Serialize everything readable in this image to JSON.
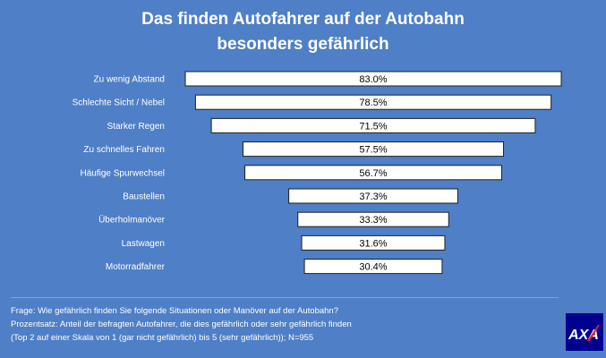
{
  "title_line1": "Das finden Autofahrer auf der Autobahn",
  "title_line2": "besonders gefährlich",
  "chart_data": {
    "type": "bar",
    "orientation": "horizontal",
    "layout": "centered",
    "categories": [
      "Zu wenig Abstand",
      "Schlechte Sicht / Nebel",
      "Starker Regen",
      "Zu schnelles Fahren",
      "Häufige Spurwechsel",
      "Baustellen",
      "Überholmanöver",
      "Lastwagen",
      "Motorradfahrer"
    ],
    "values": [
      83.0,
      78.5,
      71.5,
      57.5,
      56.7,
      37.3,
      33.3,
      31.6,
      30.4
    ],
    "labels": [
      "83.0%",
      "78.5%",
      "71.5%",
      "57.5%",
      "56.7%",
      "37.3%",
      "33.3%",
      "31.6%",
      "30.4%"
    ],
    "unit": "%",
    "max": 83.0
  },
  "footer": {
    "line1": "Frage: Wie gefährlich finden Sie folgende Situationen oder Manöver auf der Autobahn?",
    "line2": "Prozentsatz: Anteil der befragten Autofahrer, die dies gefährlich oder sehr gefährlich finden",
    "line3": "(Top 2 auf einer Skala von 1 (gar nicht gefährlich) bis 5 (sehr gefährlich)); N=955"
  },
  "logo": {
    "text": "AXA",
    "bg_color": "#00008f",
    "stripe_color": "#ff1721"
  },
  "colors": {
    "background": "#4f7fc6",
    "bar_fill": "#ffffff",
    "bar_stroke": "#1f1f1f"
  }
}
